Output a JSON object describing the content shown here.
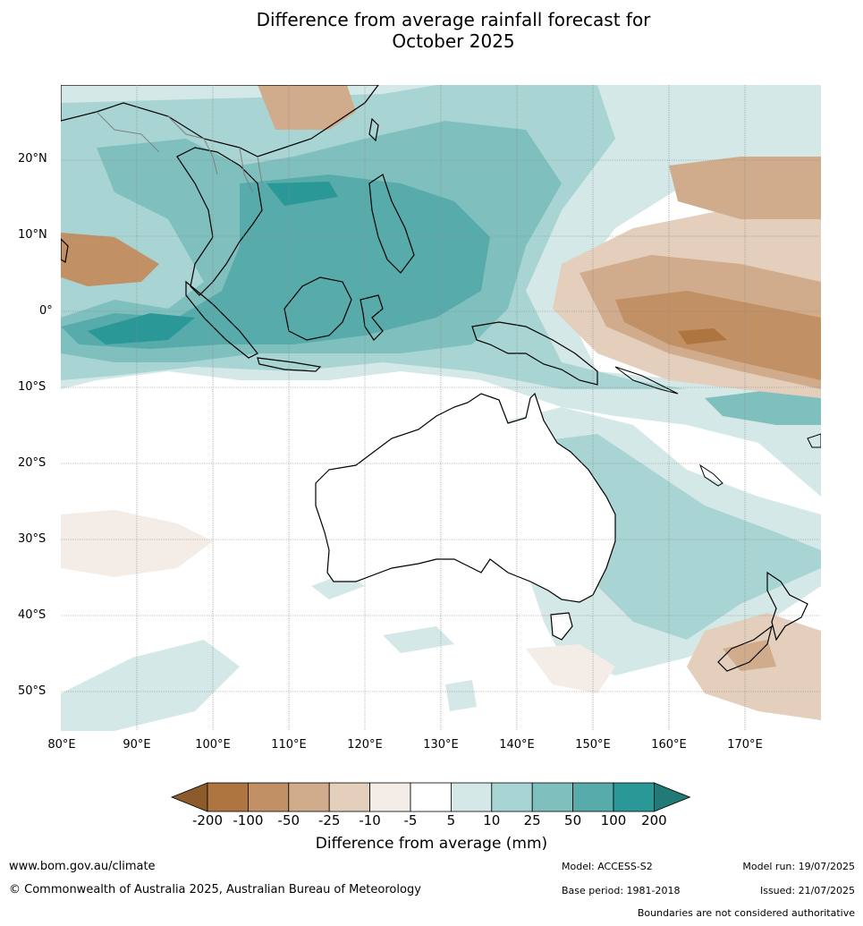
{
  "title": {
    "line1": "Difference from average rainfall forecast for",
    "line2": "October 2025"
  },
  "map": {
    "lat_labels": [
      "20°N",
      "10°N",
      "0°",
      "10°S",
      "20°S",
      "30°S",
      "40°S",
      "50°S"
    ],
    "lon_labels": [
      "80°E",
      "90°E",
      "100°E",
      "110°E",
      "120°E",
      "130°E",
      "140°E",
      "150°E",
      "160°E",
      "170°E"
    ],
    "colors": {
      "land_outline": "#000000",
      "border": "#808080",
      "grid": "#888888"
    }
  },
  "colorbar": {
    "tick_labels": [
      "-200",
      "-100",
      "-50",
      "-25",
      "-10",
      "-5",
      "5",
      "10",
      "25",
      "50",
      "100",
      "200"
    ],
    "colors": [
      "#8c5a2b",
      "#ae7540",
      "#c19064",
      "#d0ac8c",
      "#e3cfbc",
      "#f4ece6",
      "#ffffff",
      "#d4e9e7",
      "#a8d5d3",
      "#7fc0bf",
      "#57abab",
      "#2a9896",
      "#217a78"
    ],
    "label": "Difference from average (mm)"
  },
  "footer": {
    "website": "www.bom.gov.au/climate",
    "copyright": "© Commonwealth of Australia 2025, Australian Bureau of Meteorology",
    "model": "Model: ACCESS-S2",
    "base_period": "Base period: 1981-2018",
    "model_run": "Model run: 19/07/2025",
    "issued": "Issued: 21/07/2025",
    "disclaimer": "Boundaries are not considered authoritative"
  }
}
